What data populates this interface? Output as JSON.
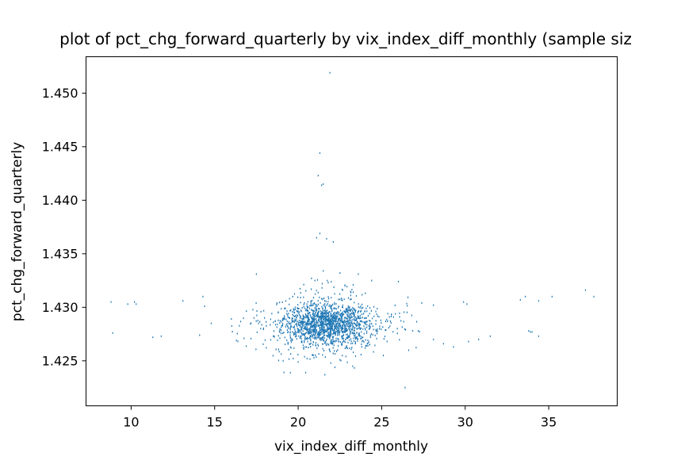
{
  "chart_data": {
    "type": "scatter",
    "title": "plot of pct_chg_forward_quarterly by vix_index_diff_monthly (sample siz",
    "xlabel": "vix_index_diff_monthly",
    "ylabel": "pct_chg_forward_quarterly",
    "xlim": [
      7.3,
      39.1
    ],
    "ylim": [
      1.4208,
      1.4534
    ],
    "xticks": [
      10,
      15,
      20,
      25,
      30,
      35
    ],
    "xtick_labels": [
      "10",
      "15",
      "20",
      "25",
      "30",
      "35"
    ],
    "yticks": [
      1.425,
      1.43,
      1.435,
      1.44,
      1.445,
      1.45
    ],
    "ytick_labels": [
      "1.425",
      "1.430",
      "1.435",
      "1.440",
      "1.445",
      "1.450"
    ],
    "grid": false,
    "marker_color": "#1f77b4",
    "outlier_points": [
      [
        21.9,
        1.4519
      ],
      [
        21.3,
        1.4444
      ],
      [
        21.2,
        1.4423
      ],
      [
        21.5,
        1.4415
      ],
      [
        21.4,
        1.4414
      ],
      [
        21.3,
        1.4369
      ],
      [
        21.7,
        1.4364
      ],
      [
        22.1,
        1.4361
      ],
      [
        21.1,
        1.4365
      ],
      [
        17.5,
        1.4331
      ],
      [
        21.5,
        1.4334
      ],
      [
        22.5,
        1.4332
      ],
      [
        23.6,
        1.4331
      ],
      [
        20.8,
        1.4327
      ],
      [
        21.0,
        1.4325
      ],
      [
        21.8,
        1.4323
      ],
      [
        22.8,
        1.432
      ],
      [
        24.4,
        1.4325
      ],
      [
        26.0,
        1.4324
      ],
      [
        8.8,
        1.4305
      ],
      [
        9.8,
        1.4303
      ],
      [
        10.2,
        1.4305
      ],
      [
        10.3,
        1.4303
      ],
      [
        13.1,
        1.4306
      ],
      [
        14.3,
        1.431
      ],
      [
        14.4,
        1.4301
      ],
      [
        27.4,
        1.4304
      ],
      [
        28.1,
        1.4302
      ],
      [
        29.9,
        1.4305
      ],
      [
        30.1,
        1.4303
      ],
      [
        33.3,
        1.4307
      ],
      [
        33.6,
        1.431
      ],
      [
        34.4,
        1.4306
      ],
      [
        35.2,
        1.431
      ],
      [
        37.2,
        1.4316
      ],
      [
        37.7,
        1.431
      ],
      [
        8.9,
        1.4276
      ],
      [
        11.3,
        1.4272
      ],
      [
        11.8,
        1.4273
      ],
      [
        14.1,
        1.4274
      ],
      [
        14.8,
        1.4285
      ],
      [
        16.3,
        1.4269
      ],
      [
        28.1,
        1.427
      ],
      [
        28.7,
        1.4266
      ],
      [
        29.3,
        1.4263
      ],
      [
        30.2,
        1.4268
      ],
      [
        30.8,
        1.427
      ],
      [
        31.5,
        1.4273
      ],
      [
        33.8,
        1.4278
      ],
      [
        34.0,
        1.4277
      ],
      [
        34.4,
        1.4273
      ],
      [
        33.9,
        1.4277
      ],
      [
        25.1,
        1.4255
      ],
      [
        23.3,
        1.4258
      ],
      [
        19.1,
        1.425
      ],
      [
        26.4,
        1.4225
      ],
      [
        21.6,
        1.4237
      ],
      [
        22.2,
        1.4244
      ],
      [
        20.0,
        1.4249
      ],
      [
        22.5,
        1.4251
      ]
    ],
    "cluster": {
      "center": [
        21.7,
        1.4284
      ],
      "sd_x": 1.25,
      "sd_y": 0.001,
      "count": 1700
    }
  }
}
